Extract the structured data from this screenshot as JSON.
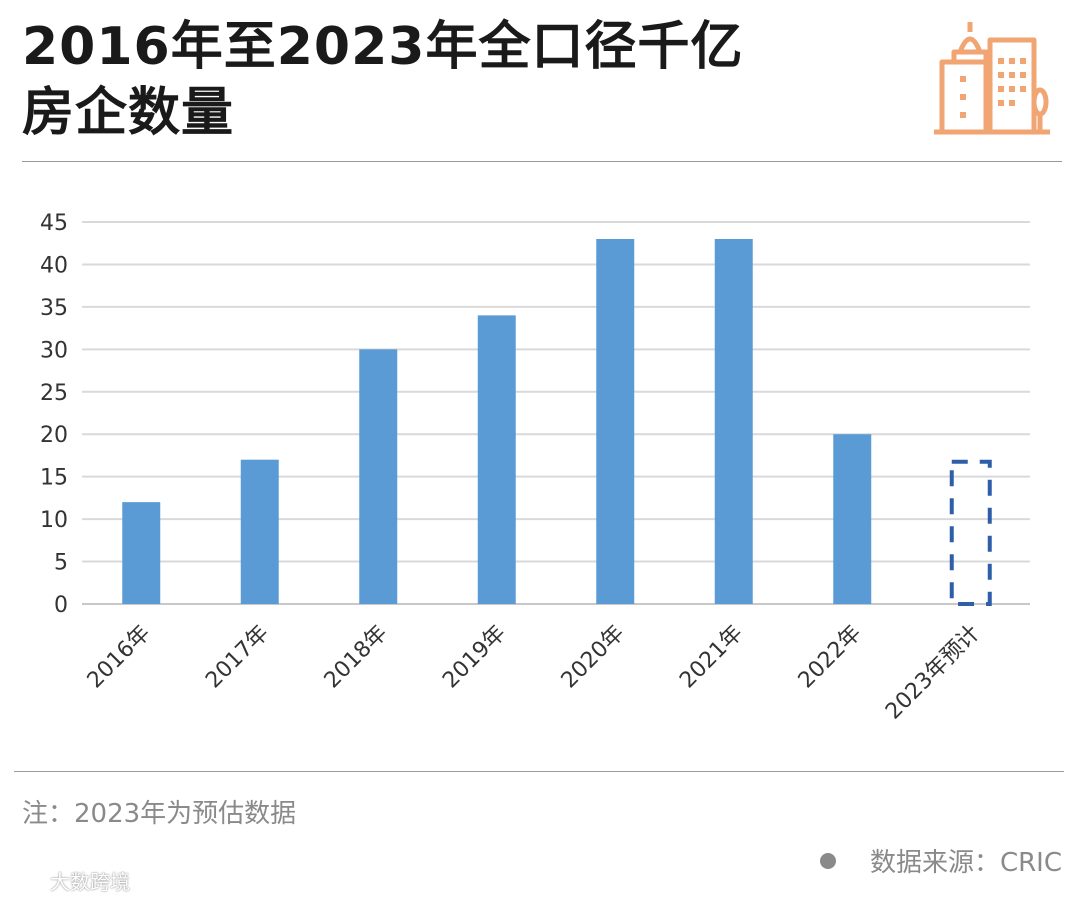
{
  "header": {
    "title_line1": "2016年至2023年全口径千亿",
    "title_line2": "房企数量",
    "logo_icon": "city-buildings-icon",
    "logo_color": "#F0A572"
  },
  "chart_data": {
    "type": "bar",
    "title": "2016年至2023年全口径千亿房企数量",
    "categories": [
      "2016年",
      "2017年",
      "2018年",
      "2019年",
      "2020年",
      "2021年",
      "2022年",
      "2023年预计"
    ],
    "values": [
      12,
      17,
      30,
      34,
      43,
      43,
      20,
      17
    ],
    "estimated": [
      false,
      false,
      false,
      false,
      false,
      false,
      false,
      true
    ],
    "xlabel": "",
    "ylabel": "",
    "ylim": [
      0,
      45
    ],
    "yticks": [
      0,
      5,
      10,
      15,
      20,
      25,
      30,
      35,
      40,
      45
    ],
    "grid": true,
    "bar_color": "#5B9BD5",
    "estimate_border_color": "#2F5EA8"
  },
  "footer": {
    "note": "注：2023年为预估数据",
    "source": "数据来源：CRIC",
    "brand": "大数跨境"
  }
}
